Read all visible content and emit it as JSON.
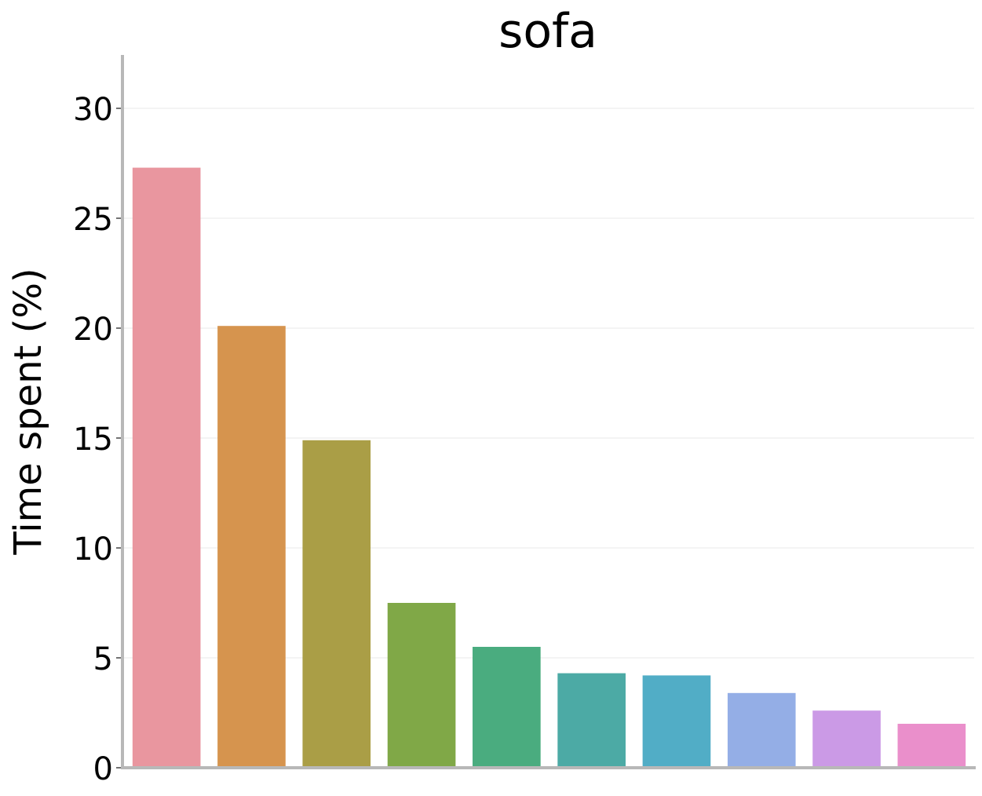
{
  "chart_data": {
    "type": "bar",
    "title": "sofa",
    "xlabel": "",
    "ylabel": "Time spent (%)",
    "ylim": [
      0,
      32.2
    ],
    "yticks": [
      0,
      5,
      10,
      15,
      20,
      25,
      30
    ],
    "ytick_labels": [
      "0",
      "5",
      "10",
      "15",
      "20",
      "25",
      "30"
    ],
    "grid": "horizontal",
    "values": [
      27.3,
      20.1,
      14.9,
      7.5,
      5.5,
      4.3,
      4.2,
      3.4,
      2.6,
      2.0
    ],
    "colors": [
      "#e9969f",
      "#d6944e",
      "#aa9e46",
      "#80a847",
      "#4aac7f",
      "#4caaa5",
      "#51adc6",
      "#94aee6",
      "#cb9ae6",
      "#ea8fcb"
    ]
  }
}
